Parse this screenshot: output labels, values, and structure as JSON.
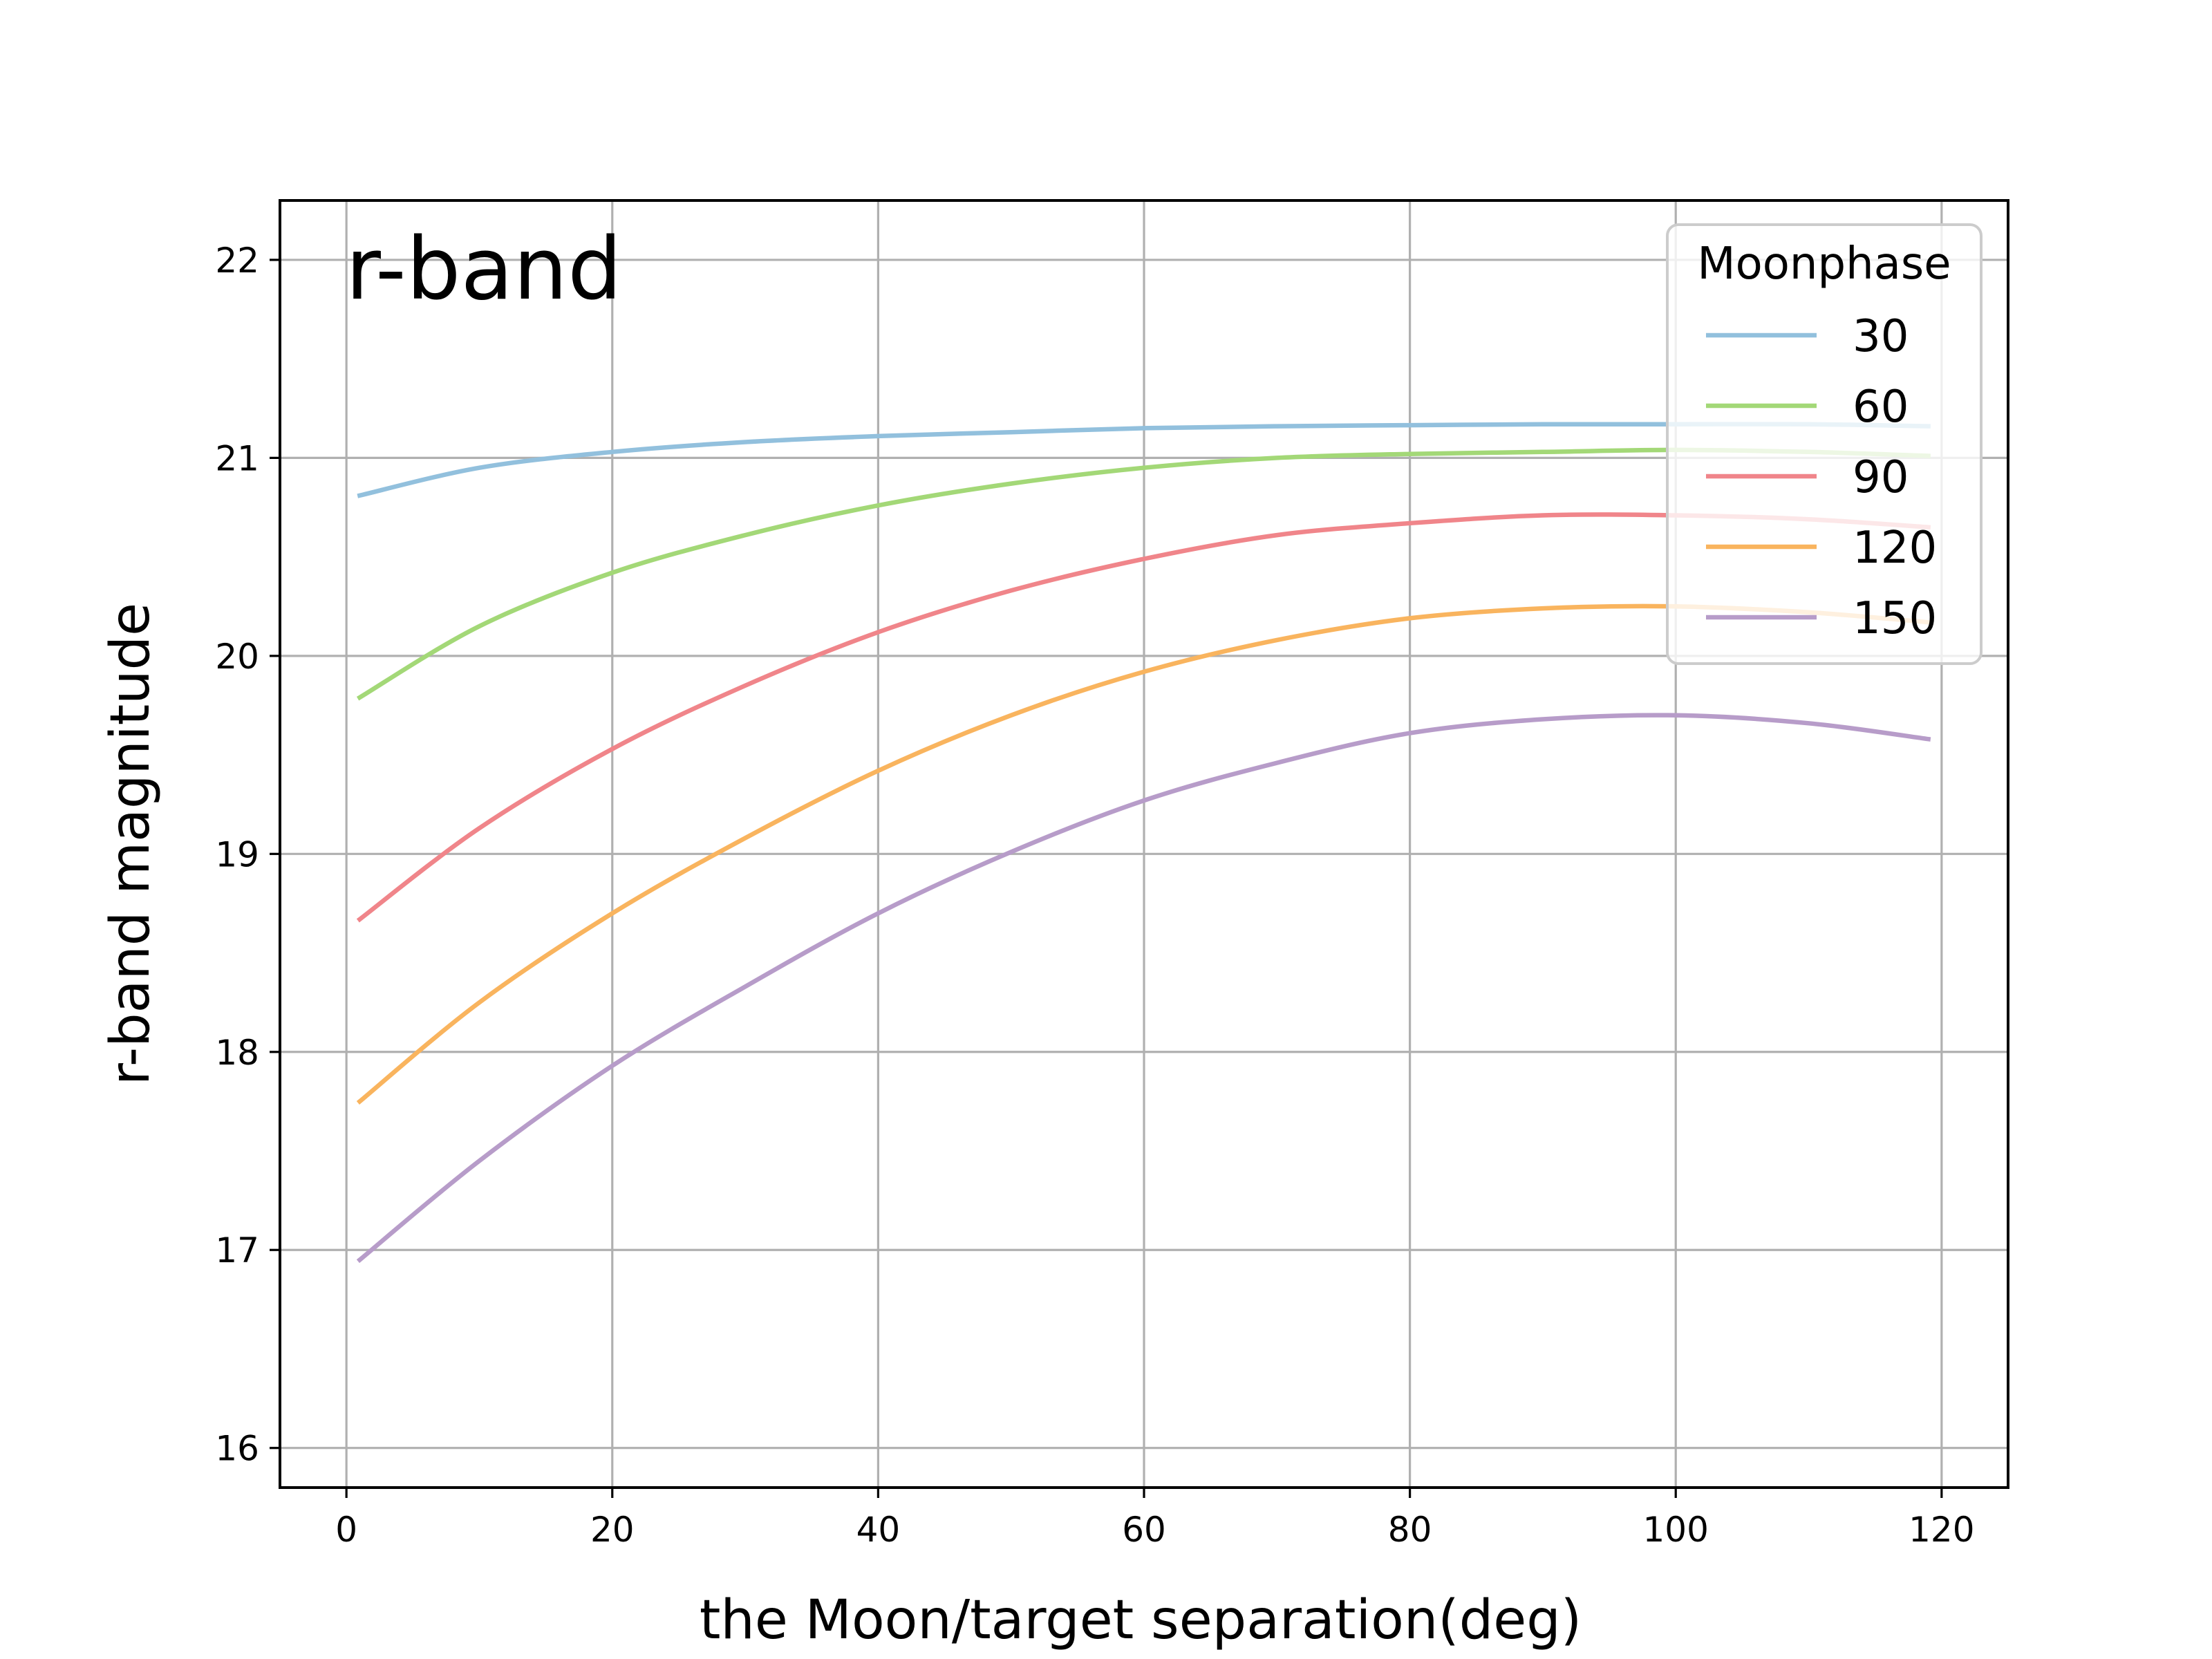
{
  "chart_data": {
    "type": "line",
    "annotation": "r-band",
    "xlabel": "the Moon/target separation(deg)",
    "ylabel": "r-band magnitude",
    "xlim": [
      -5,
      125
    ],
    "ylim": [
      15.8,
      22.3
    ],
    "xticks": [
      0,
      20,
      40,
      60,
      80,
      100,
      120
    ],
    "yticks": [
      16,
      17,
      18,
      19,
      20,
      21,
      22
    ],
    "grid": true,
    "legend_title": "Moonphase",
    "legend_position": "top-right",
    "x": [
      1,
      10,
      20,
      30,
      40,
      50,
      60,
      70,
      80,
      90,
      100,
      110,
      119
    ],
    "series": [
      {
        "name": "30",
        "color": "#92c0dd",
        "values": [
          20.81,
          20.95,
          21.03,
          21.08,
          21.11,
          21.13,
          21.15,
          21.16,
          21.165,
          21.17,
          21.17,
          21.17,
          21.16
        ]
      },
      {
        "name": "60",
        "color": "#a3d877",
        "values": [
          19.79,
          20.15,
          20.42,
          20.61,
          20.76,
          20.87,
          20.95,
          21.0,
          21.02,
          21.03,
          21.04,
          21.03,
          21.01
        ]
      },
      {
        "name": "90",
        "color": "#f0858a",
        "values": [
          18.67,
          19.13,
          19.53,
          19.85,
          20.12,
          20.33,
          20.49,
          20.61,
          20.67,
          20.71,
          20.71,
          20.69,
          20.65
        ]
      },
      {
        "name": "120",
        "color": "#f9b45e",
        "values": [
          17.75,
          18.25,
          18.7,
          19.08,
          19.42,
          19.7,
          19.92,
          20.08,
          20.19,
          20.24,
          20.25,
          20.22,
          20.17
        ]
      },
      {
        "name": "150",
        "color": "#b79cc9",
        "values": [
          16.95,
          17.45,
          17.93,
          18.33,
          18.7,
          19.01,
          19.27,
          19.46,
          19.61,
          19.68,
          19.7,
          19.66,
          19.58
        ]
      }
    ]
  }
}
